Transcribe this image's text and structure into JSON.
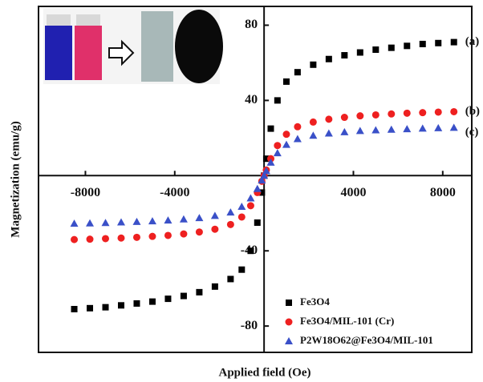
{
  "chart_data": {
    "type": "scatter",
    "x_label": "Applied field (Oe)",
    "y_label": "Magnetization (emu/g)",
    "xlim": [
      -10100,
      9300
    ],
    "ylim": [
      -94,
      90
    ],
    "xticks": [
      -8000,
      -4000,
      4000,
      8000
    ],
    "yticks": [
      -80,
      -40,
      40,
      80
    ],
    "legend": "lower right",
    "x": [
      -8500,
      -7800,
      -7100,
      -6400,
      -5700,
      -5000,
      -4300,
      -3600,
      -2900,
      -2200,
      -1500,
      -1000,
      -600,
      -300,
      -100,
      0,
      100,
      300,
      600,
      1000,
      1500,
      2200,
      2900,
      3600,
      4300,
      5000,
      5700,
      6400,
      7100,
      7800,
      8500
    ],
    "series": [
      {
        "name": "Fe3O4",
        "color": "#000000",
        "marker": "square",
        "annotation": "(a)",
        "values": [
          -71,
          -70.5,
          -70,
          -69,
          -68,
          -67,
          -65.5,
          -64,
          -62,
          -59,
          -55,
          -50,
          -40,
          -25,
          -9,
          0,
          9,
          25,
          40,
          50,
          55,
          59,
          62,
          64,
          65.5,
          67,
          68,
          69,
          70,
          70.5,
          71
        ]
      },
      {
        "name": "Fe3O4/MIL-101 (Cr)",
        "color": "#ee2020",
        "marker": "circle",
        "annotation": "(b)",
        "values": [
          -34,
          -33.8,
          -33.5,
          -33.2,
          -32.8,
          -32.3,
          -31.8,
          -31,
          -30,
          -28.5,
          -26,
          -22,
          -16,
          -9,
          -3,
          0,
          3,
          9,
          16,
          22,
          26,
          28.5,
          30,
          31,
          31.8,
          32.3,
          32.8,
          33.2,
          33.5,
          33.8,
          34
        ]
      },
      {
        "name": "P2W18O62@Fe3O4/MIL-101",
        "color": "#3a50c8",
        "marker": "triangle",
        "annotation": "(c)",
        "values": [
          -25.5,
          -25.3,
          -25.1,
          -24.8,
          -24.5,
          -24.2,
          -23.8,
          -23.2,
          -22.5,
          -21.3,
          -19.5,
          -16.5,
          -12,
          -7,
          -2.5,
          0,
          2.5,
          7,
          12,
          16.5,
          19.5,
          21.3,
          22.5,
          23.2,
          23.8,
          24.2,
          24.5,
          24.8,
          25.1,
          25.3,
          25.5
        ]
      }
    ]
  }
}
